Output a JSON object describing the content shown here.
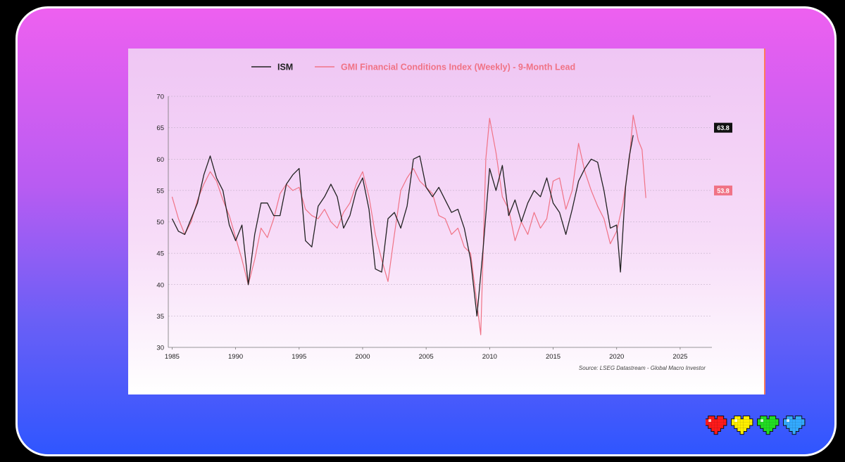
{
  "colors": {
    "ism": "#222222",
    "gmi": "#f07386",
    "hearts": [
      "#ff1a1a",
      "#ffee00",
      "#22dd22",
      "#33aaff"
    ]
  },
  "decoration": {
    "hearts_icon": "pixel-heart-icon"
  },
  "chart_data": {
    "type": "line",
    "title": "",
    "xlabel": "",
    "ylabel": "",
    "source": "Source: LSEG Datastream - Global Macro Investor",
    "xlim": [
      1984.7,
      2027.5
    ],
    "ylim": [
      30,
      70
    ],
    "x_ticks": [
      "1985",
      "1990",
      "1995",
      "2000",
      "2005",
      "2010",
      "2015",
      "2020",
      "2025"
    ],
    "y_ticks": [
      "30",
      "35",
      "40",
      "45",
      "50",
      "55",
      "60",
      "65",
      "70"
    ],
    "grid": "horizontal-dashed",
    "legend": "top-center",
    "series": [
      {
        "name": "ISM",
        "last_value_label": "63.8",
        "points": [
          [
            1985.0,
            50.5
          ],
          [
            1985.5,
            48.5
          ],
          [
            1986.0,
            48.0
          ],
          [
            1986.5,
            50.5
          ],
          [
            1987.0,
            53.0
          ],
          [
            1987.5,
            57.5
          ],
          [
            1988.0,
            60.5
          ],
          [
            1988.5,
            57.0
          ],
          [
            1989.0,
            55.0
          ],
          [
            1989.5,
            49.5
          ],
          [
            1990.0,
            47.0
          ],
          [
            1990.5,
            49.5
          ],
          [
            1991.0,
            40.0
          ],
          [
            1991.5,
            48.0
          ],
          [
            1992.0,
            53.0
          ],
          [
            1992.5,
            53.0
          ],
          [
            1993.0,
            51.0
          ],
          [
            1993.5,
            51.0
          ],
          [
            1994.0,
            56.0
          ],
          [
            1994.5,
            57.5
          ],
          [
            1995.0,
            58.5
          ],
          [
            1995.5,
            47.0
          ],
          [
            1996.0,
            46.0
          ],
          [
            1996.5,
            52.5
          ],
          [
            1997.0,
            54.0
          ],
          [
            1997.5,
            56.0
          ],
          [
            1998.0,
            54.0
          ],
          [
            1998.5,
            49.0
          ],
          [
            1999.0,
            51.0
          ],
          [
            1999.5,
            55.0
          ],
          [
            2000.0,
            57.0
          ],
          [
            2000.5,
            52.0
          ],
          [
            2001.0,
            42.5
          ],
          [
            2001.5,
            42.0
          ],
          [
            2002.0,
            50.5
          ],
          [
            2002.5,
            51.5
          ],
          [
            2003.0,
            49.0
          ],
          [
            2003.5,
            52.5
          ],
          [
            2004.0,
            60.0
          ],
          [
            2004.5,
            60.5
          ],
          [
            2005.0,
            55.5
          ],
          [
            2005.5,
            54.0
          ],
          [
            2006.0,
            55.5
          ],
          [
            2006.5,
            53.5
          ],
          [
            2007.0,
            51.5
          ],
          [
            2007.5,
            52.0
          ],
          [
            2008.0,
            49.0
          ],
          [
            2008.5,
            44.0
          ],
          [
            2009.0,
            35.0
          ],
          [
            2009.5,
            46.0
          ],
          [
            2010.0,
            58.5
          ],
          [
            2010.5,
            55.0
          ],
          [
            2011.0,
            59.0
          ],
          [
            2011.5,
            51.0
          ],
          [
            2012.0,
            53.5
          ],
          [
            2012.5,
            50.0
          ],
          [
            2013.0,
            53.0
          ],
          [
            2013.5,
            55.0
          ],
          [
            2014.0,
            54.0
          ],
          [
            2014.5,
            57.0
          ],
          [
            2015.0,
            53.0
          ],
          [
            2015.5,
            51.5
          ],
          [
            2016.0,
            48.0
          ],
          [
            2016.5,
            52.0
          ],
          [
            2017.0,
            56.5
          ],
          [
            2017.5,
            58.5
          ],
          [
            2018.0,
            60.0
          ],
          [
            2018.5,
            59.5
          ],
          [
            2019.0,
            55.0
          ],
          [
            2019.5,
            49.0
          ],
          [
            2020.0,
            49.5
          ],
          [
            2020.3,
            42.0
          ],
          [
            2020.7,
            55.5
          ],
          [
            2021.0,
            60.5
          ],
          [
            2021.3,
            63.8
          ]
        ]
      },
      {
        "name": "GMI Financial Conditions Index (Weekly) - 9-Month Lead",
        "last_value_label": "53.8",
        "points": [
          [
            1985.0,
            54.0
          ],
          [
            1985.5,
            50.5
          ],
          [
            1986.0,
            48.0
          ],
          [
            1986.5,
            50.0
          ],
          [
            1987.0,
            53.5
          ],
          [
            1987.5,
            56.0
          ],
          [
            1988.0,
            58.0
          ],
          [
            1988.5,
            56.5
          ],
          [
            1989.0,
            53.5
          ],
          [
            1989.5,
            51.0
          ],
          [
            1990.0,
            47.5
          ],
          [
            1990.5,
            44.0
          ],
          [
            1991.0,
            40.0
          ],
          [
            1991.5,
            44.0
          ],
          [
            1992.0,
            49.0
          ],
          [
            1992.5,
            47.5
          ],
          [
            1993.0,
            50.5
          ],
          [
            1993.5,
            54.5
          ],
          [
            1994.0,
            56.0
          ],
          [
            1994.5,
            55.0
          ],
          [
            1995.0,
            55.5
          ],
          [
            1995.5,
            52.0
          ],
          [
            1996.0,
            51.0
          ],
          [
            1996.5,
            50.5
          ],
          [
            1997.0,
            52.0
          ],
          [
            1997.5,
            50.0
          ],
          [
            1998.0,
            49.0
          ],
          [
            1998.5,
            51.5
          ],
          [
            1999.0,
            53.0
          ],
          [
            1999.5,
            56.0
          ],
          [
            2000.0,
            58.0
          ],
          [
            2000.5,
            54.0
          ],
          [
            2001.0,
            48.0
          ],
          [
            2001.5,
            44.0
          ],
          [
            2002.0,
            40.5
          ],
          [
            2002.5,
            48.0
          ],
          [
            2003.0,
            55.0
          ],
          [
            2003.5,
            57.0
          ],
          [
            2004.0,
            58.5
          ],
          [
            2004.5,
            56.5
          ],
          [
            2005.0,
            55.5
          ],
          [
            2005.5,
            54.5
          ],
          [
            2006.0,
            51.0
          ],
          [
            2006.5,
            50.5
          ],
          [
            2007.0,
            48.0
          ],
          [
            2007.5,
            49.0
          ],
          [
            2008.0,
            46.0
          ],
          [
            2008.5,
            45.0
          ],
          [
            2009.0,
            37.0
          ],
          [
            2009.3,
            32.0
          ],
          [
            2009.7,
            60.0
          ],
          [
            2010.0,
            66.5
          ],
          [
            2010.5,
            61.0
          ],
          [
            2011.0,
            54.0
          ],
          [
            2011.5,
            52.0
          ],
          [
            2012.0,
            47.0
          ],
          [
            2012.5,
            50.0
          ],
          [
            2013.0,
            48.0
          ],
          [
            2013.5,
            51.5
          ],
          [
            2014.0,
            49.0
          ],
          [
            2014.5,
            50.5
          ],
          [
            2015.0,
            56.5
          ],
          [
            2015.5,
            57.0
          ],
          [
            2016.0,
            52.0
          ],
          [
            2016.5,
            55.0
          ],
          [
            2017.0,
            62.5
          ],
          [
            2017.5,
            58.0
          ],
          [
            2018.0,
            55.0
          ],
          [
            2018.5,
            52.5
          ],
          [
            2019.0,
            50.5
          ],
          [
            2019.5,
            46.5
          ],
          [
            2020.0,
            48.5
          ],
          [
            2020.5,
            53.0
          ],
          [
            2021.0,
            60.0
          ],
          [
            2021.3,
            67.0
          ],
          [
            2021.7,
            63.0
          ],
          [
            2022.0,
            61.5
          ],
          [
            2022.3,
            53.8
          ]
        ]
      }
    ]
  }
}
